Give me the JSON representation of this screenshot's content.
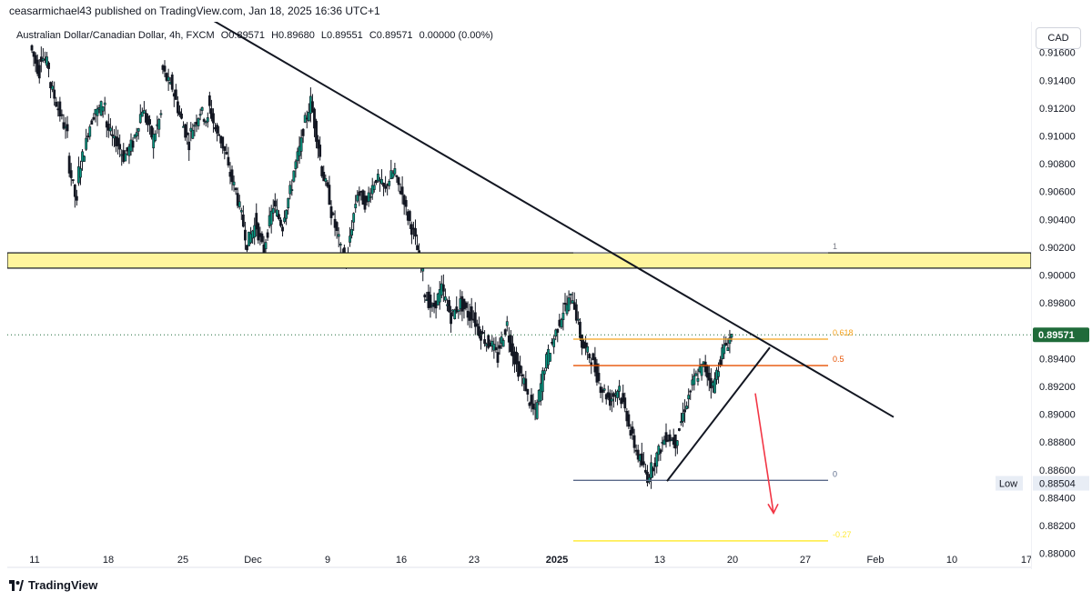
{
  "header": {
    "publisher_line": "ceasarmichael43 published on TradingView.com, Jan 18, 2025 16:36 UTC+1"
  },
  "legend": {
    "symbol": "Australian Dollar/Canadian Dollar, 4h, FXCM",
    "open": "O0.89571",
    "high": "H0.89680",
    "low": "L0.89551",
    "close": "C0.89571",
    "change": "0.00000 (0.00%)"
  },
  "axis": {
    "currency": "CAD",
    "y_ticks": [
      "0.91600",
      "0.91400",
      "0.91200",
      "0.91000",
      "0.90800",
      "0.90600",
      "0.90400",
      "0.90200",
      "0.90000",
      "0.89800",
      "0.89400",
      "0.89200",
      "0.89000",
      "0.88800",
      "0.88600",
      "0.88400",
      "0.88200",
      "0.88000"
    ],
    "x_ticks": [
      "11",
      "18",
      "25",
      "Dec",
      "9",
      "16",
      "23",
      "2025",
      "13",
      "20",
      "27",
      "Feb",
      "10",
      "17"
    ],
    "current_price_label": "0.89571",
    "low_tag": "Low",
    "low_value": "0.88504"
  },
  "colors": {
    "bull": "#089981",
    "bear": "#f23645",
    "candle_body": "#131722",
    "zone_fill": "#fff59d",
    "fib_1": "#787b86",
    "fib_0618": "#f7a21b",
    "fib_05": "#e65100",
    "fib_0": "#5b6a8a",
    "fib_neg027": "#ffeb3b",
    "arrow": "#f23645",
    "price_tag": "#1f6b3a"
  },
  "chart_data": {
    "type": "candlestick",
    "title": "Australian Dollar/Canadian Dollar, 4h, FXCM",
    "y_range": [
      0.879,
      0.9182
    ],
    "resistance_zone": [
      0.9005,
      0.9016
    ],
    "fibonacci": [
      {
        "label": "1",
        "price": 0.9016
      },
      {
        "label": "0.618",
        "price": 0.8954
      },
      {
        "label": "0.5",
        "price": 0.8935
      },
      {
        "label": "0",
        "price": 0.88525
      },
      {
        "label": "-0.27",
        "price": 0.8809
      }
    ],
    "downtrend_line": [
      {
        "x": "Nov 27",
        "y": 0.9188
      },
      {
        "x": "Feb 1",
        "y": 0.8898
      }
    ],
    "rising_wedge_line": [
      {
        "x": "Jan 13",
        "y": 0.8852
      },
      {
        "x": "Jan 22",
        "y": 0.8948
      }
    ],
    "projection_arrow": [
      {
        "x": "Jan 21",
        "y": 0.8915
      },
      {
        "x": "Jan 24",
        "y": 0.8829
      }
    ],
    "last_price": 0.89571,
    "session_low": 0.88504,
    "path": [
      [
        0.9165,
        0.9145
      ],
      [
        0.916,
        0.915
      ],
      [
        0.914,
        0.912
      ],
      [
        0.912,
        0.91
      ],
      [
        0.9085,
        0.905
      ],
      [
        0.907,
        0.9095
      ],
      [
        0.91,
        0.912
      ],
      [
        0.9115,
        0.9125
      ],
      [
        0.911,
        0.9095
      ],
      [
        0.91,
        0.9085
      ],
      [
        0.9085,
        0.9095
      ],
      [
        0.9095,
        0.912
      ],
      [
        0.912,
        0.91
      ],
      [
        0.9095,
        0.9115
      ],
      [
        0.915,
        0.9135
      ],
      [
        0.914,
        0.9115
      ],
      [
        0.9115,
        0.9095
      ],
      [
        0.91,
        0.9115
      ],
      [
        0.912,
        0.911
      ],
      [
        0.9125,
        0.91
      ],
      [
        0.9105,
        0.9085
      ],
      [
        0.908,
        0.906
      ],
      [
        0.906,
        0.903
      ],
      [
        0.902,
        0.9035
      ],
      [
        0.904,
        0.9015
      ],
      [
        0.902,
        0.905
      ],
      [
        0.905,
        0.9035
      ],
      [
        0.904,
        0.9065
      ],
      [
        0.907,
        0.9095
      ],
      [
        0.91,
        0.9125
      ],
      [
        0.9125,
        0.9085
      ],
      [
        0.908,
        0.9055
      ],
      [
        0.905,
        0.9025
      ],
      [
        0.902,
        0.901
      ],
      [
        0.902,
        0.906
      ],
      [
        0.906,
        0.905
      ],
      [
        0.9055,
        0.907
      ],
      [
        0.907,
        0.906
      ],
      [
        0.9065,
        0.9075
      ],
      [
        0.907,
        0.9055
      ],
      [
        0.905,
        0.903
      ],
      [
        0.903,
        0.9
      ],
      [
        0.899,
        0.8975
      ],
      [
        0.8975,
        0.899
      ],
      [
        0.899,
        0.897
      ],
      [
        0.897,
        0.898
      ],
      [
        0.898,
        0.897
      ],
      [
        0.8975,
        0.896
      ],
      [
        0.896,
        0.895
      ],
      [
        0.8955,
        0.894
      ],
      [
        0.8945,
        0.8965
      ],
      [
        0.896,
        0.8935
      ],
      [
        0.8935,
        0.892
      ],
      [
        0.8915,
        0.89
      ],
      [
        0.89,
        0.8935
      ],
      [
        0.8935,
        0.8955
      ],
      [
        0.8955,
        0.8975
      ],
      [
        0.8975,
        0.8985
      ],
      [
        0.8985,
        0.895
      ],
      [
        0.895,
        0.894
      ],
      [
        0.894,
        0.892
      ],
      [
        0.892,
        0.891
      ],
      [
        0.891,
        0.892
      ],
      [
        0.8915,
        0.8895
      ],
      [
        0.889,
        0.887
      ],
      [
        0.887,
        0.8855
      ],
      [
        0.8855,
        0.887
      ],
      [
        0.887,
        0.8885
      ],
      [
        0.8885,
        0.888
      ],
      [
        0.888,
        0.8905
      ],
      [
        0.8905,
        0.8925
      ],
      [
        0.8925,
        0.8935
      ],
      [
        0.8935,
        0.892
      ],
      [
        0.892,
        0.8945
      ],
      [
        0.8945,
        0.8957
      ]
    ]
  },
  "footer": {
    "brand": "TradingView"
  }
}
